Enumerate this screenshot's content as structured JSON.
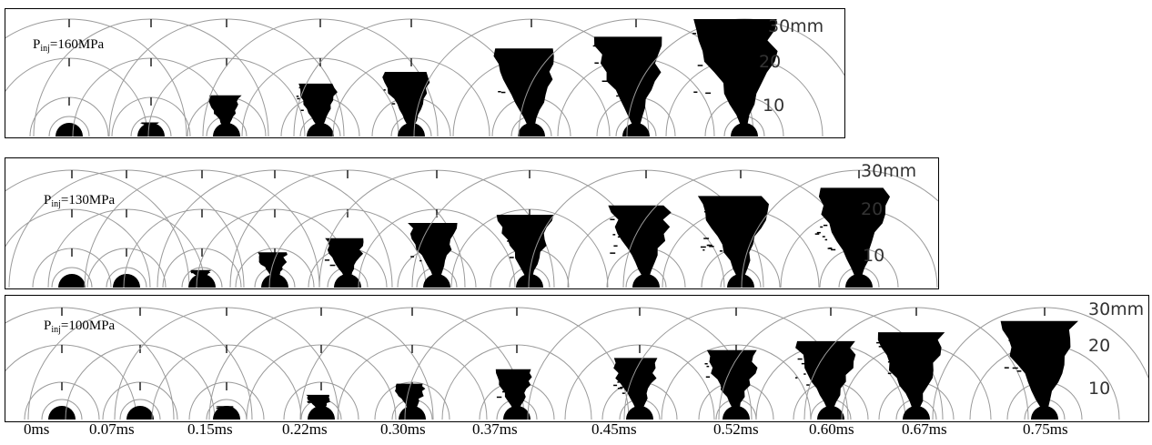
{
  "panels": [
    {
      "label_main": "P",
      "label_sub": "inj",
      "label_rest": "=160MPa",
      "scale_labels": [
        "30mm",
        "20",
        "10"
      ],
      "frames": [
        {
          "spray": 0.0
        },
        {
          "spray": 0.12
        },
        {
          "spray": 0.35
        },
        {
          "spray": 0.45
        },
        {
          "spray": 0.55
        },
        {
          "spray": 0.75
        },
        {
          "spray": 0.85
        },
        {
          "spray": 1.0
        }
      ]
    },
    {
      "label_main": "P",
      "label_sub": "inj",
      "label_rest": "=130MPa",
      "scale_labels": [
        "30mm",
        "20",
        "10"
      ],
      "frames": [
        {
          "spray": 0.0
        },
        {
          "spray": 0.0
        },
        {
          "spray": 0.15
        },
        {
          "spray": 0.3
        },
        {
          "spray": 0.42
        },
        {
          "spray": 0.55
        },
        {
          "spray": 0.62
        },
        {
          "spray": 0.7
        },
        {
          "spray": 0.78
        },
        {
          "spray": 0.85
        }
      ]
    },
    {
      "label_main": "P",
      "label_sub": "inj",
      "label_rest": "=100MPa",
      "scale_labels": [
        "30mm",
        "20",
        "10"
      ],
      "frames": [
        {
          "spray": 0.0
        },
        {
          "spray": 0.0
        },
        {
          "spray": 0.12
        },
        {
          "spray": 0.22
        },
        {
          "spray": 0.32
        },
        {
          "spray": 0.45
        },
        {
          "spray": 0.55
        },
        {
          "spray": 0.62
        },
        {
          "spray": 0.7
        },
        {
          "spray": 0.78
        },
        {
          "spray": 0.88
        }
      ]
    }
  ],
  "time_labels": [
    "0ms",
    "0.07ms",
    "0.15ms",
    "0.22ms",
    "0.30ms",
    "0.37ms",
    "0.45ms",
    "0.52ms",
    "0.60ms",
    "0.67ms",
    "0.75ms"
  ],
  "colors": {
    "spray": "#000000",
    "arc": "#9a9a9a",
    "frame": "#000000"
  }
}
